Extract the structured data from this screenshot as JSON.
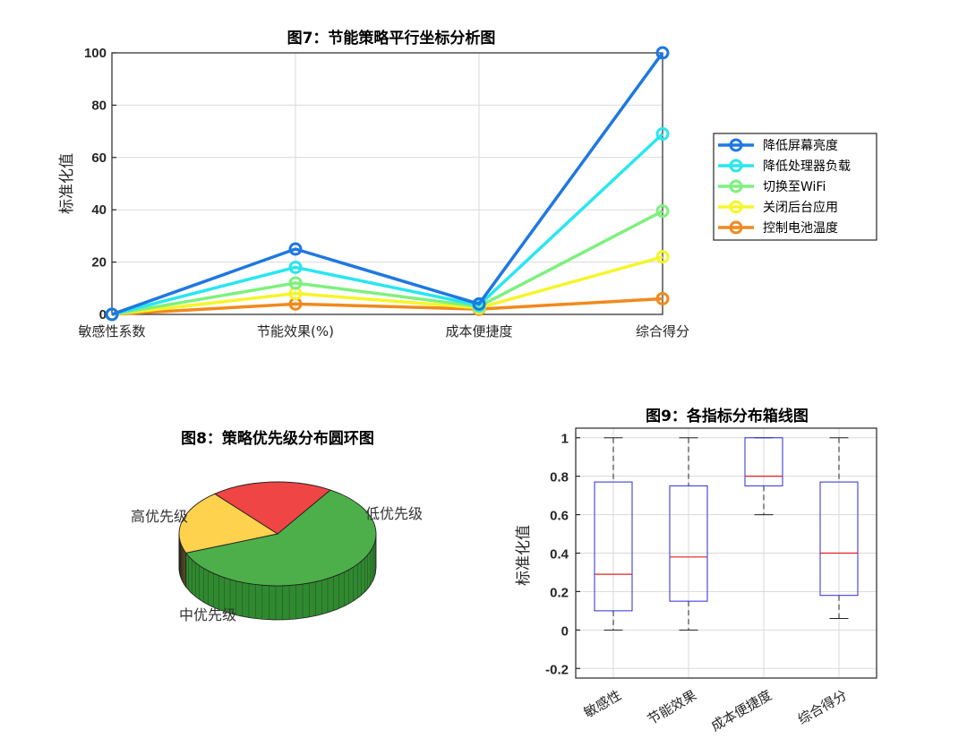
{
  "chart_data": [
    {
      "type": "line",
      "title": "图7：节能策略平行坐标分析图",
      "ylabel": "标准化值",
      "xlabel": "",
      "categories": [
        "敏感性系数",
        "节能效果(%)",
        "成本便捷度",
        "综合得分"
      ],
      "ylim": [
        0,
        100
      ],
      "yticks": [
        "0",
        "20",
        "40",
        "60",
        "80",
        "100"
      ],
      "grid": true,
      "legend_position": "right",
      "series": [
        {
          "name": "降低屏幕亮度",
          "color": "#1f78e0",
          "values": [
            0,
            25,
            4,
            100
          ]
        },
        {
          "name": "降低处理器负载",
          "color": "#29e6f0",
          "values": [
            0,
            18,
            3.5,
            69
          ]
        },
        {
          "name": "切换至WiFi",
          "color": "#7ef07e",
          "values": [
            0,
            12,
            3,
            39.5
          ]
        },
        {
          "name": "关闭后台应用",
          "color": "#f5f52a",
          "values": [
            0,
            8,
            2.5,
            22
          ]
        },
        {
          "name": "控制电池温度",
          "color": "#f08a1e",
          "values": [
            0,
            4,
            2,
            6
          ]
        }
      ]
    },
    {
      "type": "pie",
      "title": "图8：策略优先级分布圆环图",
      "slices": [
        {
          "label": "低优先级",
          "value": 60,
          "color": "#4daf4a",
          "side": "#2f8a2f"
        },
        {
          "label": "中优先级",
          "value": 20,
          "color": "#ffd24d",
          "side": "#c9a52b"
        },
        {
          "label": "高优先级",
          "value": 20,
          "color": "#f04545",
          "side": "#b52f2f"
        }
      ]
    },
    {
      "type": "box",
      "title": "图9：各指标分布箱线图",
      "ylabel": "标准化值",
      "categories": [
        "敏感性",
        "节能效果",
        "成本便捷度",
        "综合得分"
      ],
      "ylim": [
        -0.25,
        1.05
      ],
      "yticks": [
        "-0.2",
        "0",
        "0.2",
        "0.4",
        "0.6",
        "0.8",
        "1"
      ],
      "grid": true,
      "boxes": [
        {
          "min": 0,
          "q1": 0.1,
          "median": 0.29,
          "q3": 0.77,
          "max": 1
        },
        {
          "min": 0,
          "q1": 0.15,
          "median": 0.38,
          "q3": 0.75,
          "max": 1
        },
        {
          "min": 0.6,
          "q1": 0.75,
          "median": 0.8,
          "q3": 1,
          "max": 1
        },
        {
          "min": 0.06,
          "q1": 0.18,
          "median": 0.4,
          "q3": 0.77,
          "max": 1
        }
      ]
    }
  ]
}
